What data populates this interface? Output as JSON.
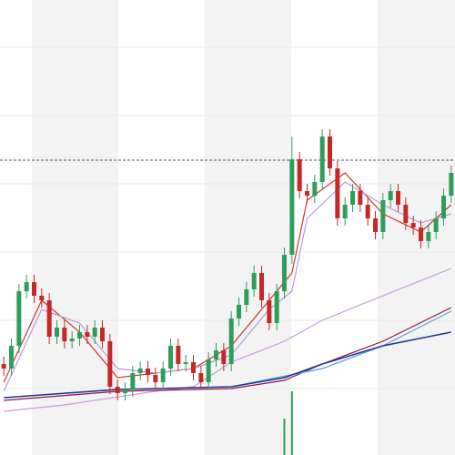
{
  "chart_data": {
    "type": "candlestick",
    "xlim": [
      -0.5,
      59.5
    ],
    "ylim": [
      0,
      500
    ],
    "yticks": [
      73,
      148,
      223,
      298,
      373,
      448
    ],
    "grid": true,
    "price_line": 324,
    "up_color": "#2f9e5a",
    "down_color": "#c62828",
    "candles": {
      "open": [
        100,
        95,
        120,
        180,
        190,
        175,
        170,
        130,
        140,
        125,
        128,
        135,
        130,
        140,
        125,
        75,
        68,
        72,
        90,
        95,
        88,
        80,
        95,
        120,
        100,
        102,
        90,
        80,
        105,
        115,
        100,
        150,
        165,
        182,
        200,
        170,
        145,
        180,
        220,
        325,
        290,
        285,
        300,
        350,
        315,
        260,
        275,
        290,
        275,
        260,
        245,
        280,
        290,
        275,
        255,
        250,
        235,
        245,
        260,
        285
      ],
      "high": [
        108,
        128,
        188,
        198,
        198,
        183,
        178,
        148,
        148,
        136,
        143,
        143,
        148,
        148,
        133,
        83,
        80,
        98,
        103,
        103,
        96,
        103,
        128,
        128,
        110,
        110,
        98,
        113,
        123,
        123,
        158,
        173,
        190,
        208,
        208,
        178,
        188,
        228,
        350,
        333,
        298,
        308,
        358,
        358,
        323,
        283,
        298,
        298,
        283,
        268,
        288,
        298,
        298,
        283,
        263,
        258,
        253,
        268,
        293,
        318
      ],
      "low": [
        87,
        87,
        112,
        172,
        167,
        162,
        122,
        122,
        117,
        117,
        120,
        122,
        122,
        117,
        67,
        60,
        60,
        64,
        82,
        80,
        72,
        72,
        87,
        92,
        92,
        82,
        72,
        72,
        97,
        92,
        92,
        142,
        157,
        174,
        162,
        137,
        137,
        172,
        210,
        282,
        277,
        277,
        292,
        307,
        252,
        252,
        267,
        267,
        252,
        237,
        237,
        272,
        267,
        247,
        242,
        227,
        227,
        237,
        252,
        277
      ],
      "close": [
        95,
        120,
        180,
        190,
        175,
        170,
        130,
        140,
        125,
        128,
        135,
        130,
        140,
        125,
        75,
        68,
        72,
        90,
        95,
        88,
        80,
        95,
        120,
        100,
        102,
        90,
        80,
        105,
        115,
        100,
        150,
        165,
        182,
        200,
        170,
        145,
        180,
        220,
        325,
        290,
        285,
        300,
        350,
        315,
        260,
        275,
        290,
        275,
        260,
        245,
        280,
        290,
        275,
        255,
        250,
        235,
        245,
        260,
        285,
        310
      ]
    },
    "volume": {
      "x": [
        37,
        38
      ],
      "values": [
        40,
        70
      ],
      "color": "#2f9e5a"
    },
    "series": [
      {
        "color": "#d0342c",
        "x": [
          0,
          5,
          10,
          15,
          20,
          25,
          30,
          35,
          38,
          40,
          45,
          50,
          55,
          59
        ],
        "values": [
          80,
          170,
          135,
          85,
          90,
          95,
          120,
          170,
          200,
          280,
          310,
          265,
          245,
          275
        ]
      },
      {
        "color": "#b39ddb",
        "x": [
          0,
          5,
          10,
          15,
          20,
          25,
          30,
          35,
          38,
          40,
          45,
          50,
          55,
          59
        ],
        "values": [
          70,
          160,
          145,
          95,
          90,
          95,
          110,
          160,
          180,
          260,
          300,
          275,
          255,
          265
        ]
      },
      {
        "color": "#c39be0",
        "x": [
          0,
          8,
          20,
          25,
          30,
          37,
          42,
          50,
          59
        ],
        "values": [
          48,
          55,
          70,
          75,
          102,
          125,
          148,
          175,
          205
        ]
      },
      {
        "color": "#8b1a3a",
        "x": [
          0,
          15,
          30,
          37,
          42,
          50,
          59
        ],
        "values": [
          60,
          70,
          73,
          82,
          100,
          125,
          162
        ]
      },
      {
        "color": "#4fa3d9",
        "x": [
          30,
          42,
          50,
          59
        ],
        "values": [
          75,
          95,
          120,
          158
        ]
      },
      {
        "color": "#23349b",
        "x": [
          0,
          15,
          30,
          37,
          42,
          50,
          59
        ],
        "values": [
          63,
          72,
          75,
          85,
          100,
          120,
          135
        ]
      }
    ]
  }
}
